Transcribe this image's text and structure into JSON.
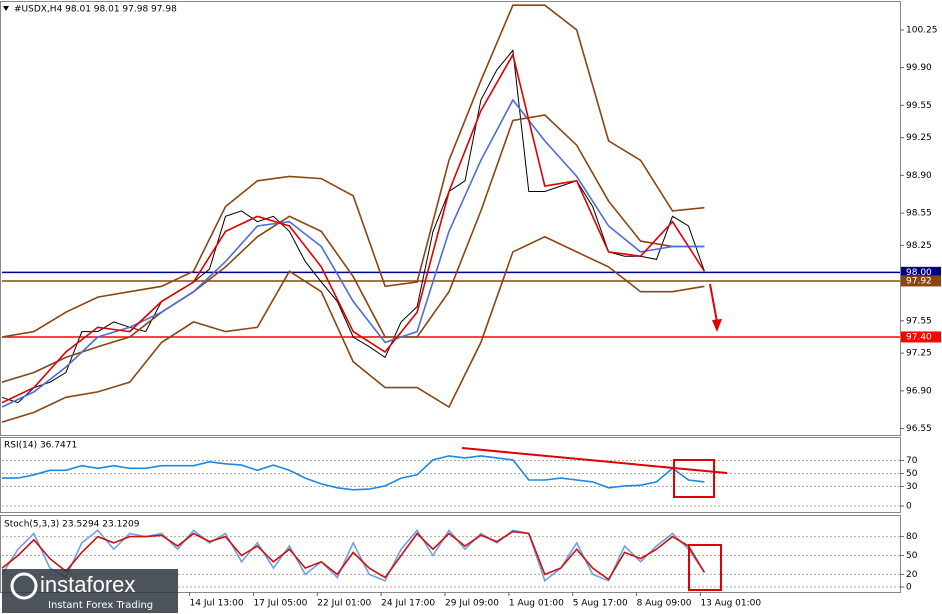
{
  "chart_data": [
    {
      "type": "line",
      "title": "#USDX,H4 98.01 98.01 97.98 97.98",
      "xlim": [
        0,
        225
      ],
      "xticks": [
        {
          "value": 47,
          "label": "14 Jul 13:00"
        },
        {
          "value": 63,
          "label": "17 Jul 05:00"
        },
        {
          "value": 79,
          "label": "22 Jul 01:00"
        },
        {
          "value": 95,
          "label": "24 Jul 17:00"
        },
        {
          "value": 111,
          "label": "29 Jul 09:00"
        },
        {
          "value": 127,
          "label": "1 Aug 01:00"
        },
        {
          "value": 143,
          "label": "5 Aug 17:00"
        },
        {
          "value": 159,
          "label": "8 Aug 09:00"
        },
        {
          "value": 175,
          "label": "13 Aug 01:00"
        }
      ],
      "ylim": [
        96.49,
        100.5
      ],
      "yticks": [
        100.25,
        {
          "value": 99.9,
          "label": "99.90"
        },
        99.55,
        99.25,
        {
          "value": 98.9,
          "label": "98.90"
        },
        98.55,
        98.25,
        {
          "value": 97.9,
          "label": "97.90"
        },
        97.55,
        97.25,
        {
          "value": 96.9,
          "label": "96.90"
        },
        96.55
      ],
      "levels": [
        {
          "value": 98,
          "label": "98.00",
          "color": "#00008b"
        },
        {
          "value": 97.92,
          "color": "#8b4513"
        },
        {
          "value": 97.4,
          "label": "97.40",
          "color": "#ff0000"
        }
      ],
      "series": [
        {
          "color": "#000000",
          "x": [
            0,
            4,
            8,
            12,
            16,
            20,
            24,
            28,
            32,
            36,
            40,
            44,
            48,
            52,
            56,
            60,
            64,
            68,
            72,
            76,
            80,
            84,
            88,
            92,
            96,
            100,
            104,
            108,
            112,
            116,
            120,
            124,
            128,
            132,
            136,
            140,
            144,
            148,
            152,
            156,
            160,
            164,
            168,
            172,
            176
          ],
          "values": [
            96.84,
            96.79,
            96.93,
            96.98,
            97.07,
            97.45,
            97.45,
            97.54,
            97.49,
            97.45,
            97.73,
            97.82,
            97.91,
            98.03,
            98.52,
            98.57,
            98.47,
            98.52,
            98.38,
            98.1,
            97.91,
            97.73,
            97.4,
            97.31,
            97.21,
            97.54,
            97.68,
            98.38,
            98.75,
            98.85,
            99.6,
            99.88,
            100.06,
            98.75,
            98.75,
            98.8,
            98.85,
            98.61,
            98.19,
            98.15,
            98.15,
            98.12,
            98.52,
            98.43,
            98.01
          ]
        },
        {
          "color": "#8b4513",
          "x": [
            0,
            8,
            16,
            24,
            32,
            40,
            48,
            56,
            64,
            72,
            80,
            88,
            96,
            104,
            112,
            120,
            128,
            136,
            144,
            152,
            160,
            168,
            176
          ],
          "values": [
            97.4,
            97.45,
            97.63,
            97.77,
            97.82,
            97.87,
            98.01,
            98.61,
            98.85,
            98.89,
            98.87,
            98.71,
            97.87,
            97.91,
            99.04,
            99.78,
            100.48,
            100.48,
            100.25,
            99.22,
            99.04,
            98.57,
            98.6
          ]
        },
        {
          "color": "#8b4513",
          "x": [
            0,
            8,
            16,
            24,
            32,
            40,
            48,
            56,
            64,
            72,
            80,
            88,
            96,
            104,
            112,
            120,
            128,
            136,
            144,
            152,
            160,
            168,
            176
          ],
          "values": [
            96.98,
            97.07,
            97.21,
            97.31,
            97.4,
            97.63,
            97.82,
            98.05,
            98.33,
            98.52,
            98.38,
            97.96,
            97.4,
            97.4,
            97.82,
            98.57,
            99.41,
            99.46,
            99.18,
            98.66,
            98.29,
            98.24,
            98.24
          ]
        },
        {
          "color": "#8b4513",
          "x": [
            0,
            8,
            16,
            24,
            32,
            40,
            48,
            56,
            64,
            72,
            80,
            88,
            96,
            104,
            112,
            120,
            128,
            136,
            144,
            152,
            160,
            168,
            176
          ],
          "values": [
            96.61,
            96.7,
            96.84,
            96.89,
            96.98,
            97.35,
            97.54,
            97.45,
            97.49,
            98.01,
            97.82,
            97.17,
            96.93,
            96.93,
            96.75,
            97.35,
            98.19,
            98.33,
            98.19,
            98.05,
            97.82,
            97.82,
            97.87
          ]
        },
        {
          "color": "#4a6fd6",
          "x": [
            0,
            8,
            16,
            24,
            32,
            40,
            48,
            56,
            64,
            72,
            80,
            88,
            96,
            104,
            112,
            120,
            128,
            136,
            144,
            152,
            160,
            168,
            176
          ],
          "values": [
            96.75,
            96.89,
            97.12,
            97.4,
            97.49,
            97.63,
            97.82,
            98.1,
            98.43,
            98.47,
            98.24,
            97.73,
            97.35,
            97.45,
            98.38,
            99.04,
            99.6,
            99.22,
            98.89,
            98.43,
            98.19,
            98.24,
            98.24
          ]
        },
        {
          "color": "#e00000",
          "x": [
            0,
            8,
            16,
            24,
            32,
            40,
            48,
            56,
            64,
            72,
            80,
            88,
            96,
            104,
            112,
            120,
            128,
            136,
            144,
            152,
            160,
            168,
            176
          ],
          "values": [
            96.79,
            96.93,
            97.26,
            97.49,
            97.45,
            97.73,
            97.91,
            98.38,
            98.52,
            98.43,
            98.05,
            97.45,
            97.26,
            97.63,
            98.75,
            99.5,
            100.02,
            98.8,
            98.85,
            98.19,
            98.15,
            98.47,
            98.01
          ]
        }
      ]
    },
    {
      "type": "line",
      "title": "RSI(14) 36.7471",
      "xlim": [
        0,
        225
      ],
      "ylim": [
        0,
        100
      ],
      "yticks": [
        0,
        30,
        50,
        70
      ],
      "grid": true,
      "series": [
        {
          "color": "#1e88e5",
          "x": [
            0,
            4,
            8,
            12,
            16,
            20,
            24,
            28,
            32,
            36,
            40,
            44,
            48,
            52,
            56,
            60,
            64,
            68,
            72,
            76,
            80,
            84,
            88,
            92,
            96,
            100,
            104,
            108,
            112,
            116,
            120,
            124,
            128,
            132,
            136,
            140,
            144,
            148,
            152,
            156,
            160,
            164,
            168,
            172,
            176
          ],
          "values": [
            43,
            43,
            48,
            55,
            55,
            62,
            58,
            62,
            58,
            58,
            62,
            62,
            62,
            68,
            65,
            63,
            55,
            63,
            55,
            43,
            34,
            28,
            25,
            26,
            31,
            43,
            48,
            71,
            77,
            74,
            77,
            74,
            71,
            40,
            40,
            43,
            40,
            37,
            28,
            31,
            32,
            37,
            58,
            40,
            37
          ]
        }
      ]
    },
    {
      "type": "line",
      "title": "Stoch(5,3,3) 23.5294 23.1209",
      "xlim": [
        0,
        225
      ],
      "ylim": [
        0,
        100
      ],
      "yticks": [
        0,
        20,
        50,
        80
      ],
      "grid": true,
      "series": [
        {
          "color": "#6fa0e8",
          "x": [
            0,
            4,
            8,
            12,
            16,
            20,
            24,
            28,
            32,
            36,
            40,
            44,
            48,
            52,
            56,
            60,
            64,
            68,
            72,
            76,
            80,
            84,
            88,
            92,
            96,
            100,
            104,
            108,
            112,
            116,
            120,
            124,
            128,
            132,
            136,
            140,
            144,
            148,
            152,
            156,
            160,
            164,
            168,
            172,
            176
          ],
          "values": [
            20,
            60,
            85,
            30,
            15,
            70,
            90,
            60,
            85,
            80,
            85,
            60,
            90,
            70,
            85,
            40,
            70,
            30,
            65,
            20,
            40,
            15,
            70,
            20,
            10,
            60,
            90,
            50,
            90,
            60,
            85,
            70,
            90,
            85,
            10,
            30,
            70,
            20,
            10,
            65,
            40,
            65,
            85,
            60,
            23.5294
          ]
        },
        {
          "color": "#d01010",
          "x": [
            0,
            4,
            8,
            12,
            16,
            20,
            24,
            28,
            32,
            36,
            40,
            44,
            48,
            52,
            56,
            60,
            64,
            68,
            72,
            76,
            80,
            84,
            88,
            92,
            96,
            100,
            104,
            108,
            112,
            116,
            120,
            124,
            128,
            132,
            136,
            140,
            144,
            148,
            152,
            156,
            160,
            164,
            168,
            172,
            176
          ],
          "values": [
            30,
            50,
            75,
            45,
            25,
            55,
            80,
            70,
            80,
            80,
            82,
            65,
            85,
            72,
            80,
            50,
            65,
            40,
            60,
            30,
            40,
            20,
            55,
            30,
            15,
            50,
            85,
            60,
            85,
            65,
            82,
            72,
            88,
            85,
            20,
            30,
            60,
            30,
            12,
            55,
            45,
            60,
            80,
            65,
            23.1209
          ]
        }
      ]
    }
  ],
  "watermark": {
    "brand": "instaforex",
    "tagline": "Instant Forex Trading"
  }
}
